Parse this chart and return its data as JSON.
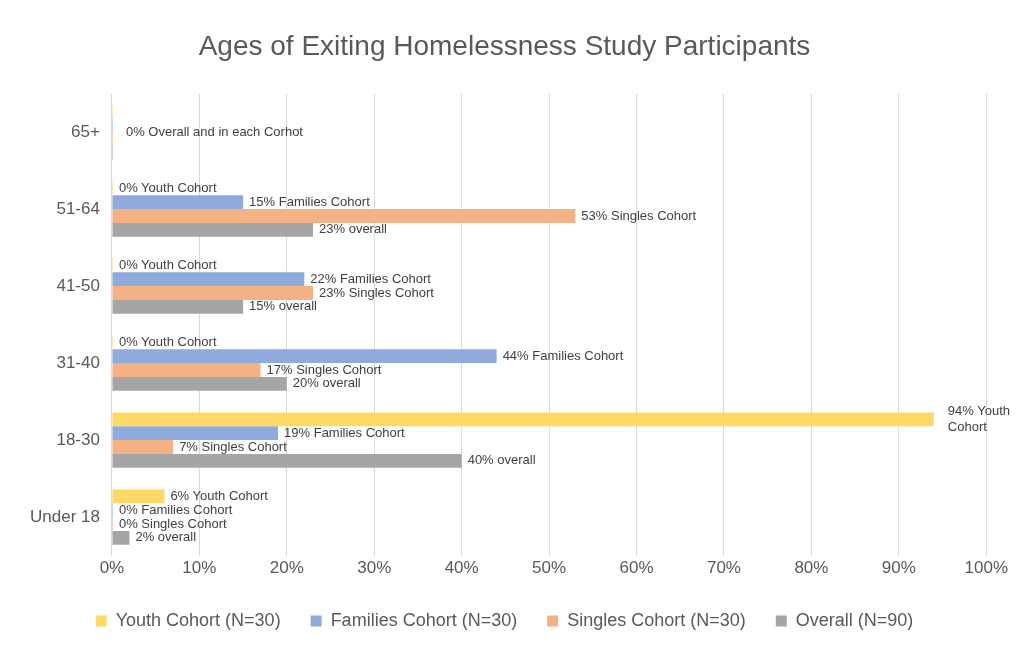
{
  "chart_data": {
    "type": "bar",
    "orientation": "horizontal",
    "title": "Ages of Exiting Homelessness Study Participants",
    "categories": [
      "65+",
      "51-64",
      "41-50",
      "31-40",
      "18-30",
      "Under 18"
    ],
    "series": [
      {
        "name": "Youth Cohort (N=30)",
        "color": "#ffd966",
        "values": [
          0,
          0,
          0,
          0,
          94,
          6
        ],
        "value_labels": [
          null,
          "0% Youth Cohort",
          "0% Youth Cohort",
          "0% Youth Cohort",
          "94% Youth Cohort",
          "6% Youth Cohort"
        ]
      },
      {
        "name": "Families Cohort (N=30)",
        "color": "#8faadc",
        "values": [
          0,
          15,
          22,
          44,
          19,
          0
        ],
        "value_labels": [
          null,
          "15% Families Cohort",
          "22% Families Cohort",
          "44% Families Cohort",
          "19% Families Cohort",
          "0% Families Cohort"
        ]
      },
      {
        "name": "Singles Cohort (N=30)",
        "color": "#f4b183",
        "values": [
          0,
          53,
          23,
          17,
          7,
          0
        ],
        "value_labels": [
          null,
          "53% Singles Cohort",
          "23% Singles Cohort",
          "17% Singles Cohort",
          "7% Singles Cohort",
          "0% Singles Cohort"
        ]
      },
      {
        "name": "Overall (N=90)",
        "color": "#a5a5a5",
        "values": [
          0,
          23,
          15,
          20,
          40,
          2
        ],
        "value_labels": [
          null,
          "23% overall",
          "15% overall",
          "20% overall",
          "40% overall",
          "2% overall"
        ]
      }
    ],
    "xlim": [
      0,
      100
    ],
    "xticks": [
      {
        "value": 0,
        "label": "0%"
      },
      {
        "value": 10,
        "label": "10%"
      },
      {
        "value": 20,
        "label": "20%"
      },
      {
        "value": 30,
        "label": "30%"
      },
      {
        "value": 40,
        "label": "40%"
      },
      {
        "value": 50,
        "label": "50%"
      },
      {
        "value": 60,
        "label": "60%"
      },
      {
        "value": 70,
        "label": "70%"
      },
      {
        "value": 80,
        "label": "80%"
      },
      {
        "value": 90,
        "label": "90%"
      },
      {
        "value": 100,
        "label": "100%"
      }
    ],
    "annotations": [
      {
        "text": "0% Overall and in each Corhot",
        "x": 0,
        "y": "65+"
      }
    ],
    "grid": "x",
    "legend": "bottom"
  }
}
